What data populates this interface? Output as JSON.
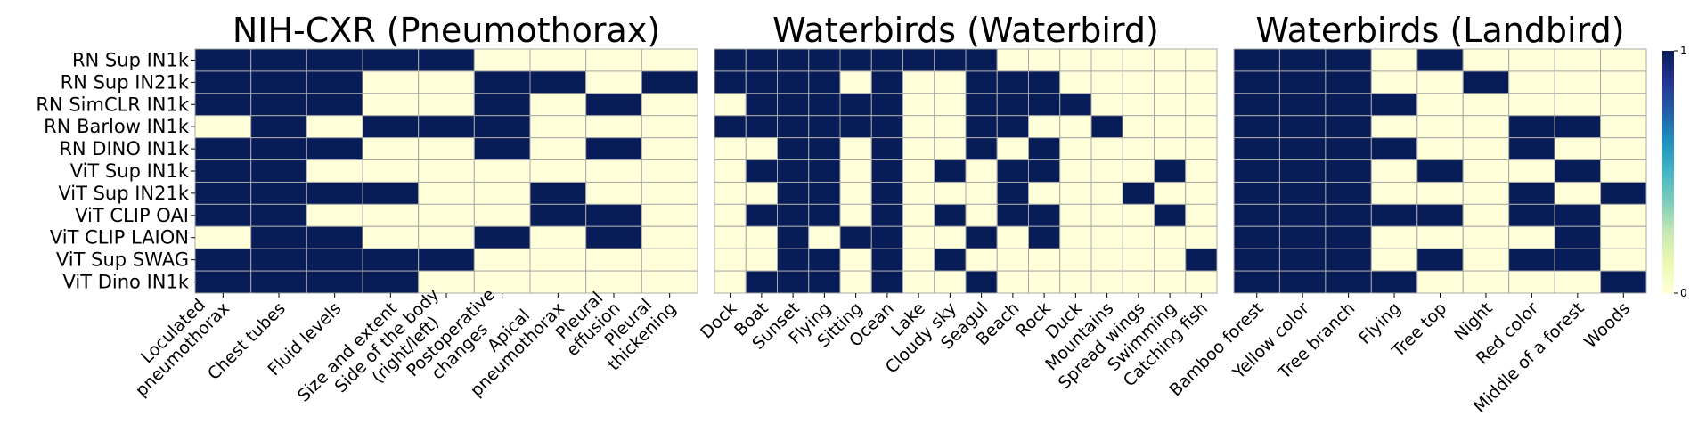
{
  "colors": {
    "high": "#081d58",
    "low": "#ffffd9",
    "gridline": "#a9a9a9",
    "colormap": "YlGnBu"
  },
  "colorbar": {
    "max_label": "1",
    "min_label": "0"
  },
  "chart_data": [
    {
      "type": "heatmap",
      "title": "NIH-CXR (Pneumothorax)",
      "rows": [
        "RN Sup IN1k",
        "RN Sup IN21k",
        "RN SimCLR IN1k",
        "RN Barlow IN1k",
        "RN DINO IN1k",
        "ViT Sup IN1k",
        "ViT Sup IN21k",
        "ViT CLIP OAI",
        "ViT CLIP LAION",
        "ViT Sup SWAG",
        "ViT Dino IN1k"
      ],
      "columns": [
        "Loculated\npneumothorax",
        "Chest tubes",
        "Fluid levels",
        "Size and extent",
        "Side of the body\n(right/left)",
        "Postoperative\nchanges",
        "Apical\npneumothorax",
        "Pleural\neffusion",
        "Pleural\nthickening"
      ],
      "values": [
        [
          1,
          1,
          1,
          1,
          1,
          0,
          0,
          0,
          0
        ],
        [
          1,
          1,
          1,
          0,
          0,
          1,
          1,
          0,
          1
        ],
        [
          1,
          1,
          1,
          0,
          0,
          1,
          0,
          1,
          0
        ],
        [
          0,
          1,
          0,
          1,
          1,
          1,
          0,
          0,
          0
        ],
        [
          1,
          1,
          1,
          0,
          0,
          1,
          0,
          1,
          0
        ],
        [
          1,
          1,
          0,
          0,
          0,
          0,
          0,
          0,
          0
        ],
        [
          1,
          1,
          1,
          1,
          0,
          0,
          1,
          0,
          0
        ],
        [
          1,
          1,
          0,
          0,
          0,
          0,
          1,
          1,
          0
        ],
        [
          0,
          1,
          1,
          0,
          0,
          1,
          0,
          1,
          0
        ],
        [
          1,
          1,
          1,
          1,
          1,
          0,
          0,
          0,
          0
        ],
        [
          1,
          1,
          1,
          1,
          0,
          0,
          0,
          0,
          0
        ]
      ]
    },
    {
      "type": "heatmap",
      "title": "Waterbirds (Waterbird)",
      "rows": [
        "RN Sup IN1k",
        "RN Sup IN21k",
        "RN SimCLR IN1k",
        "RN Barlow IN1k",
        "RN DINO IN1k",
        "ViT Sup IN1k",
        "ViT Sup IN21k",
        "ViT CLIP OAI",
        "ViT CLIP LAION",
        "ViT Sup SWAG",
        "ViT Dino IN1k"
      ],
      "columns": [
        "Dock",
        "Boat",
        "Sunset",
        "Flying",
        "Sitting",
        "Ocean",
        "Lake",
        "Cloudy sky",
        "Seagul",
        "Beach",
        "Rock",
        "Duck",
        "Mountains",
        "Spread wings",
        "Swimming",
        "Catching fish"
      ],
      "values": [
        [
          1,
          1,
          1,
          1,
          1,
          1,
          1,
          1,
          1,
          0,
          0,
          0,
          0,
          0,
          0,
          0
        ],
        [
          1,
          1,
          1,
          1,
          0,
          1,
          0,
          0,
          1,
          1,
          1,
          0,
          0,
          0,
          0,
          0
        ],
        [
          0,
          1,
          1,
          1,
          1,
          1,
          0,
          0,
          1,
          1,
          1,
          1,
          0,
          0,
          0,
          0
        ],
        [
          1,
          1,
          1,
          1,
          1,
          1,
          0,
          0,
          1,
          1,
          0,
          0,
          1,
          0,
          0,
          0
        ],
        [
          0,
          0,
          1,
          1,
          0,
          1,
          0,
          0,
          1,
          0,
          1,
          0,
          0,
          0,
          0,
          0
        ],
        [
          0,
          1,
          1,
          1,
          0,
          1,
          0,
          1,
          0,
          1,
          1,
          0,
          0,
          0,
          1,
          0
        ],
        [
          0,
          0,
          1,
          1,
          0,
          1,
          0,
          0,
          0,
          1,
          0,
          0,
          0,
          1,
          0,
          0
        ],
        [
          0,
          1,
          1,
          1,
          0,
          1,
          0,
          1,
          0,
          1,
          1,
          0,
          0,
          0,
          1,
          0
        ],
        [
          0,
          0,
          1,
          0,
          1,
          1,
          0,
          0,
          1,
          0,
          1,
          0,
          0,
          0,
          0,
          0
        ],
        [
          0,
          0,
          1,
          1,
          0,
          1,
          0,
          1,
          0,
          0,
          0,
          0,
          0,
          0,
          0,
          1
        ],
        [
          0,
          1,
          1,
          1,
          0,
          1,
          0,
          0,
          1,
          0,
          0,
          0,
          0,
          0,
          0,
          0
        ]
      ]
    },
    {
      "type": "heatmap",
      "title": "Waterbirds (Landbird)",
      "rows": [
        "RN Sup IN1k",
        "RN Sup IN21k",
        "RN SimCLR IN1k",
        "RN Barlow IN1k",
        "RN DINO IN1k",
        "ViT Sup IN1k",
        "ViT Sup IN21k",
        "ViT CLIP OAI",
        "ViT CLIP LAION",
        "ViT Sup SWAG",
        "ViT Dino IN1k"
      ],
      "columns": [
        "Bamboo forest",
        "Yellow color",
        "Tree branch",
        "Flying",
        "Tree top",
        "Night",
        "Red color",
        "Middle of a forest",
        "Woods"
      ],
      "values": [
        [
          1,
          1,
          1,
          0,
          1,
          0,
          0,
          0,
          0
        ],
        [
          1,
          1,
          1,
          0,
          0,
          1,
          0,
          0,
          0
        ],
        [
          1,
          1,
          1,
          1,
          0,
          0,
          0,
          0,
          0
        ],
        [
          1,
          1,
          1,
          0,
          0,
          0,
          1,
          1,
          0
        ],
        [
          1,
          1,
          1,
          1,
          0,
          0,
          1,
          0,
          0
        ],
        [
          1,
          1,
          1,
          0,
          1,
          0,
          0,
          1,
          0
        ],
        [
          1,
          1,
          1,
          0,
          0,
          0,
          1,
          0,
          1
        ],
        [
          1,
          1,
          1,
          1,
          1,
          0,
          1,
          1,
          0
        ],
        [
          1,
          1,
          1,
          0,
          0,
          0,
          0,
          1,
          0
        ],
        [
          1,
          1,
          1,
          0,
          1,
          0,
          1,
          1,
          0
        ],
        [
          1,
          1,
          1,
          1,
          0,
          0,
          0,
          0,
          1
        ]
      ]
    }
  ]
}
